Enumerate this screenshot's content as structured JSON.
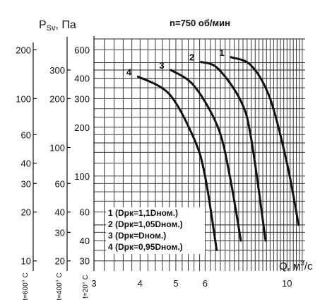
{
  "chart_data": {
    "type": "line",
    "title": "n=750 об/мин",
    "ylabel": "Psv, Па",
    "ylabel_base": "P",
    "ylabel_sub": "Sv",
    "ylabel_unit": ", Па",
    "xlabel": "Q, м³/с",
    "xlabel_base": "Q, м",
    "xlabel_sup": "3",
    "xlabel_tail": "/c",
    "x_scale": "log",
    "y_scale": "log",
    "xlim": [
      3,
      11.2
    ],
    "ylim": [
      26,
      700
    ],
    "x_ticks": [
      3,
      4,
      5,
      6,
      10
    ],
    "x_tick_labels": [
      "3",
      "4",
      "5",
      "6",
      "10"
    ],
    "main_axis": {
      "label": "t=20° C",
      "ticks": [
        30,
        40,
        60,
        100,
        200,
        300,
        400,
        600
      ],
      "tick_labels": [
        "30",
        "40",
        "60",
        "100",
        "200",
        "300",
        "400",
        "600"
      ]
    },
    "secondary_axes": [
      {
        "label": "t=400° C",
        "ticks": [
          20,
          30,
          40,
          60,
          100,
          200,
          300
        ],
        "tick_labels": [
          "20",
          "30",
          "40",
          "60",
          "100",
          "200",
          "300"
        ]
      },
      {
        "label": "t=600° C",
        "ticks": [
          10,
          20,
          30,
          40,
          60,
          100,
          200
        ],
        "tick_labels": [
          "10",
          "20",
          "30",
          "40",
          "60",
          "100",
          "200"
        ]
      }
    ],
    "series": [
      {
        "name": "1 (Dpк=1,1Dном.)",
        "label": "1",
        "x": [
          7.05,
          8.0,
          9.0,
          10.0,
          10.75
        ],
        "y": [
          540,
          480,
          300,
          120,
          50
        ]
      },
      {
        "name": "2 (Dpк=1,05Dном.)",
        "label": "2",
        "x": [
          5.85,
          6.5,
          7.5,
          8.0,
          8.75
        ],
        "y": [
          505,
          460,
          290,
          170,
          40
        ]
      },
      {
        "name": "3 (Dpк=Dном.)",
        "label": "3",
        "x": [
          4.85,
          5.6,
          6.5,
          7.0,
          7.5
        ],
        "y": [
          450,
          360,
          200,
          100,
          40
        ]
      },
      {
        "name": "4 (Dpк=0,95Dном.)",
        "label": "4",
        "x": [
          3.95,
          4.8,
          5.6,
          6.0,
          6.45
        ],
        "y": [
          410,
          320,
          170,
          100,
          35
        ]
      }
    ],
    "legend_position": "bottom-center",
    "grid": true
  }
}
